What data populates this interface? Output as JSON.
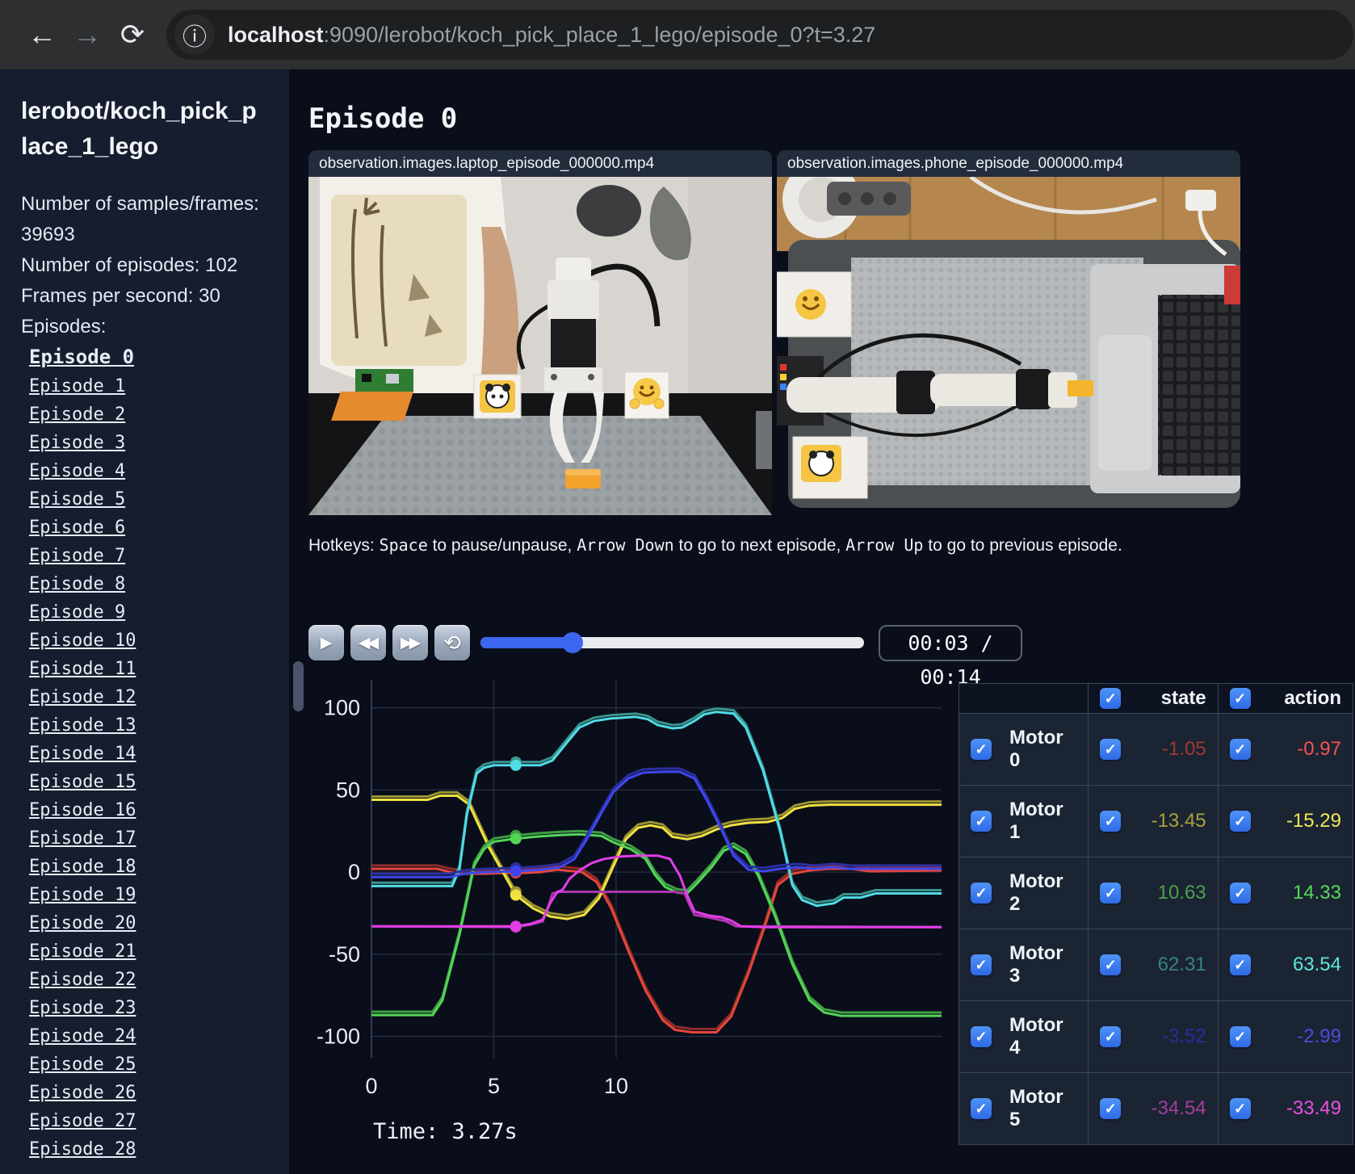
{
  "browser": {
    "icons": {
      "back": "←",
      "forward": "→",
      "reload": "⟳",
      "info": "ⓘ"
    },
    "url_host": "localhost",
    "url_rest": ":9090/lerobot/koch_pick_place_1_lego/episode_0?t=3.27"
  },
  "sidebar": {
    "title": "lerobot/koch_pick_place_1_lego",
    "stats": [
      "Number of samples/frames: 39693",
      "Number of episodes: 102",
      "Frames per second: 30"
    ],
    "episodes_heading": "Episodes:",
    "active_index": 0,
    "episodes": [
      "Episode 0",
      "Episode 1",
      "Episode 2",
      "Episode 3",
      "Episode 4",
      "Episode 5",
      "Episode 6",
      "Episode 7",
      "Episode 8",
      "Episode 9",
      "Episode 10",
      "Episode 11",
      "Episode 12",
      "Episode 13",
      "Episode 14",
      "Episode 15",
      "Episode 16",
      "Episode 17",
      "Episode 18",
      "Episode 19",
      "Episode 20",
      "Episode 21",
      "Episode 22",
      "Episode 23",
      "Episode 24",
      "Episode 25",
      "Episode 26",
      "Episode 27",
      "Episode 28"
    ]
  },
  "main": {
    "heading": "Episode 0",
    "videos": [
      {
        "caption": "observation.images.laptop_episode_000000.mp4"
      },
      {
        "caption": "observation.images.phone_episode_000000.mp4"
      }
    ],
    "hotkeys_segments": [
      {
        "t": "Hotkeys: ",
        "mono": false
      },
      {
        "t": "Space",
        "mono": true
      },
      {
        "t": " to pause/unpause, ",
        "mono": false
      },
      {
        "t": "Arrow Down",
        "mono": true
      },
      {
        "t": " to go to next episode, ",
        "mono": false
      },
      {
        "t": "Arrow Up",
        "mono": true
      },
      {
        "t": " to go to previous episode.",
        "mono": false
      }
    ],
    "controls": {
      "play": "▶",
      "rewind": "◀◀",
      "fast_forward": "▶▶",
      "loop": "⟲",
      "slider_percent": 24,
      "time_display": "00:03 / 00:14"
    },
    "time_label": "Time: 3.27s"
  },
  "chart_data": {
    "type": "line",
    "x_range": [
      0,
      23.3
    ],
    "y_range": [
      -113,
      117
    ],
    "x_ticks": [
      0,
      5,
      10
    ],
    "y_ticks": [
      100,
      50,
      0,
      -50,
      -100
    ],
    "grid": true,
    "cursor_x": 5.9,
    "legend_position": "none",
    "series": [
      {
        "name": "Motor 0",
        "action_color": "#e5463d",
        "state_color": "#8f2c27",
        "points": [
          [
            0,
            2
          ],
          [
            2.7,
            2
          ],
          [
            3.1,
            0.5
          ],
          [
            3.6,
            -1
          ],
          [
            4.6,
            -1
          ],
          [
            5.5,
            -0.5
          ],
          [
            6.2,
            -0.5
          ],
          [
            6.9,
            0
          ],
          [
            7.6,
            1.5
          ],
          [
            8.6,
            0
          ],
          [
            9.2,
            -6
          ],
          [
            9.8,
            -22
          ],
          [
            10.5,
            -48
          ],
          [
            11.2,
            -72
          ],
          [
            11.9,
            -90
          ],
          [
            12.4,
            -96
          ],
          [
            13.1,
            -97.5
          ],
          [
            14.1,
            -97.5
          ],
          [
            14.7,
            -88
          ],
          [
            15.4,
            -62
          ],
          [
            16.1,
            -32
          ],
          [
            16.6,
            -8
          ],
          [
            17.2,
            -1
          ],
          [
            17.9,
            1
          ],
          [
            18.7,
            2
          ],
          [
            19.6,
            2
          ],
          [
            20.4,
            0.5
          ],
          [
            23.3,
            1
          ]
        ]
      },
      {
        "name": "Motor 1",
        "action_color": "#efe141",
        "state_color": "#9b9431",
        "points": [
          [
            0,
            44
          ],
          [
            2.3,
            44
          ],
          [
            2.8,
            46.5
          ],
          [
            3.5,
            46.5
          ],
          [
            4,
            41
          ],
          [
            4.8,
            15
          ],
          [
            5.9,
            -14
          ],
          [
            6.6,
            -22
          ],
          [
            7.3,
            -27
          ],
          [
            8,
            -28.5
          ],
          [
            8.7,
            -26
          ],
          [
            9.3,
            -16
          ],
          [
            9.9,
            4
          ],
          [
            10.4,
            20
          ],
          [
            10.9,
            27
          ],
          [
            11.4,
            28.5
          ],
          [
            11.9,
            27
          ],
          [
            12.3,
            21.5
          ],
          [
            12.9,
            20
          ],
          [
            13.5,
            22
          ],
          [
            14.1,
            26
          ],
          [
            14.7,
            28.5
          ],
          [
            15.4,
            30
          ],
          [
            16.2,
            30.5
          ],
          [
            16.8,
            33
          ],
          [
            17.3,
            38.5
          ],
          [
            17.9,
            40.5
          ],
          [
            18.7,
            41
          ],
          [
            23.3,
            41
          ]
        ]
      },
      {
        "name": "Motor 2",
        "action_color": "#53d457",
        "state_color": "#3f9e43",
        "points": [
          [
            0,
            -87
          ],
          [
            2.5,
            -87
          ],
          [
            2.9,
            -78
          ],
          [
            3.6,
            -38
          ],
          [
            4.2,
            4
          ],
          [
            4.6,
            14
          ],
          [
            5,
            18.5
          ],
          [
            5.7,
            20
          ],
          [
            6.7,
            21.5
          ],
          [
            7.7,
            22.5
          ],
          [
            8.5,
            23
          ],
          [
            9.4,
            22
          ],
          [
            9.9,
            18
          ],
          [
            10.6,
            14
          ],
          [
            11.2,
            8
          ],
          [
            11.6,
            -2
          ],
          [
            12,
            -9
          ],
          [
            12.5,
            -12.5
          ],
          [
            12.9,
            -13
          ],
          [
            13.3,
            -7
          ],
          [
            13.9,
            3
          ],
          [
            14.4,
            13
          ],
          [
            14.8,
            15.5
          ],
          [
            15.3,
            11
          ],
          [
            15.8,
            -2
          ],
          [
            16.5,
            -27
          ],
          [
            17.2,
            -56
          ],
          [
            17.9,
            -78
          ],
          [
            18.5,
            -85.5
          ],
          [
            19.2,
            -87.5
          ],
          [
            23.3,
            -87.5
          ]
        ]
      },
      {
        "name": "Motor 3",
        "action_color": "#50dce6",
        "state_color": "#3a948e",
        "points": [
          [
            0,
            -8.5
          ],
          [
            3.3,
            -8.5
          ],
          [
            3.6,
            2
          ],
          [
            3.9,
            35
          ],
          [
            4.3,
            60
          ],
          [
            4.6,
            63.5
          ],
          [
            5,
            65
          ],
          [
            6.9,
            65
          ],
          [
            7.4,
            68
          ],
          [
            8,
            79
          ],
          [
            8.5,
            88
          ],
          [
            9.1,
            92
          ],
          [
            9.8,
            93.5
          ],
          [
            10.8,
            94.5
          ],
          [
            11.3,
            93
          ],
          [
            11.7,
            89.5
          ],
          [
            12.3,
            87.5
          ],
          [
            12.7,
            88
          ],
          [
            13.2,
            92
          ],
          [
            13.6,
            96
          ],
          [
            14.1,
            97.5
          ],
          [
            14.8,
            96.5
          ],
          [
            15.3,
            88
          ],
          [
            16,
            62
          ],
          [
            16.7,
            25
          ],
          [
            17.2,
            -8
          ],
          [
            17.6,
            -17
          ],
          [
            18.2,
            -20.5
          ],
          [
            18.9,
            -19
          ],
          [
            19.3,
            -15.5
          ],
          [
            20,
            -15.5
          ],
          [
            20.6,
            -13
          ],
          [
            23.3,
            -13
          ]
        ]
      },
      {
        "name": "Motor 4",
        "action_color": "#3f46ee",
        "state_color": "#2b2f9e",
        "points": [
          [
            0,
            -3
          ],
          [
            3.2,
            -3
          ],
          [
            3.8,
            -1
          ],
          [
            4.6,
            0
          ],
          [
            5.9,
            0.5
          ],
          [
            7,
            1.5
          ],
          [
            7.7,
            3
          ],
          [
            8.3,
            8
          ],
          [
            8.8,
            20
          ],
          [
            9.4,
            36
          ],
          [
            9.9,
            49
          ],
          [
            10.5,
            57
          ],
          [
            11.1,
            60.5
          ],
          [
            11.9,
            61
          ],
          [
            12.6,
            61
          ],
          [
            13.2,
            57
          ],
          [
            13.7,
            44
          ],
          [
            14.3,
            26
          ],
          [
            14.8,
            10
          ],
          [
            15.4,
            1.5
          ],
          [
            16,
            0.5
          ],
          [
            16.7,
            2
          ],
          [
            17.4,
            3
          ],
          [
            18.1,
            2
          ],
          [
            18.9,
            3
          ],
          [
            19.6,
            2
          ],
          [
            23.3,
            2
          ]
        ]
      },
      {
        "name": "Motor 5",
        "action_color": "#e23ee6",
        "state_color": "#a936ad",
        "points": [
          [
            0,
            -33
          ],
          [
            5.9,
            -33
          ],
          [
            6.5,
            -31.5
          ],
          [
            7,
            -29
          ],
          [
            7.3,
            -19
          ],
          [
            7.6,
            -12
          ],
          [
            7.8,
            -11
          ],
          [
            8.1,
            -4
          ],
          [
            8.5,
            1
          ],
          [
            9,
            5.5
          ],
          [
            9.5,
            8
          ],
          [
            10.2,
            9.5
          ],
          [
            10.9,
            10
          ],
          [
            11.7,
            10
          ],
          [
            12.2,
            8
          ],
          [
            12.6,
            -2
          ],
          [
            12.9,
            -14
          ],
          [
            13.2,
            -24
          ],
          [
            13.8,
            -26.5
          ],
          [
            14.3,
            -27.5
          ],
          [
            14.7,
            -29.5
          ],
          [
            15.1,
            -33
          ],
          [
            16,
            -33.5
          ],
          [
            23.3,
            -33.5
          ]
        ],
        "state_points": [
          [
            0,
            -33
          ],
          [
            5.9,
            -33.5
          ],
          [
            6.5,
            -32
          ],
          [
            7,
            -30
          ],
          [
            7.2,
            -22
          ],
          [
            7.4,
            -13
          ],
          [
            7.7,
            -12
          ],
          [
            12.4,
            -12
          ],
          [
            12.8,
            -13
          ],
          [
            13,
            -20
          ],
          [
            13.2,
            -26
          ],
          [
            13.9,
            -28
          ],
          [
            14.5,
            -30
          ],
          [
            14.9,
            -33
          ],
          [
            23.3,
            -33.5
          ]
        ]
      }
    ]
  },
  "table": {
    "check_glyph": "✓",
    "columns": [
      "state",
      "action"
    ],
    "rows": [
      {
        "label": "Motor 0",
        "state": "-1.05",
        "action": "-0.97",
        "state_color": "#a03a33",
        "action_color": "#f4534b"
      },
      {
        "label": "Motor 1",
        "state": "-13.45",
        "action": "-15.29",
        "state_color": "#aaa23a",
        "action_color": "#f3e952"
      },
      {
        "label": "Motor 2",
        "state": "10.63",
        "action": "14.33",
        "state_color": "#4fa04a",
        "action_color": "#55d858"
      },
      {
        "label": "Motor 3",
        "state": "62.31",
        "action": "63.54",
        "state_color": "#37847d",
        "action_color": "#5fe6da"
      },
      {
        "label": "Motor 4",
        "state": "-3.52",
        "action": "-2.99",
        "state_color": "#2a2da0",
        "action_color": "#4a4ddf"
      },
      {
        "label": "Motor 5",
        "state": "-34.54",
        "action": "-33.49",
        "state_color": "#a23f98",
        "action_color": "#ea52dd"
      }
    ]
  }
}
